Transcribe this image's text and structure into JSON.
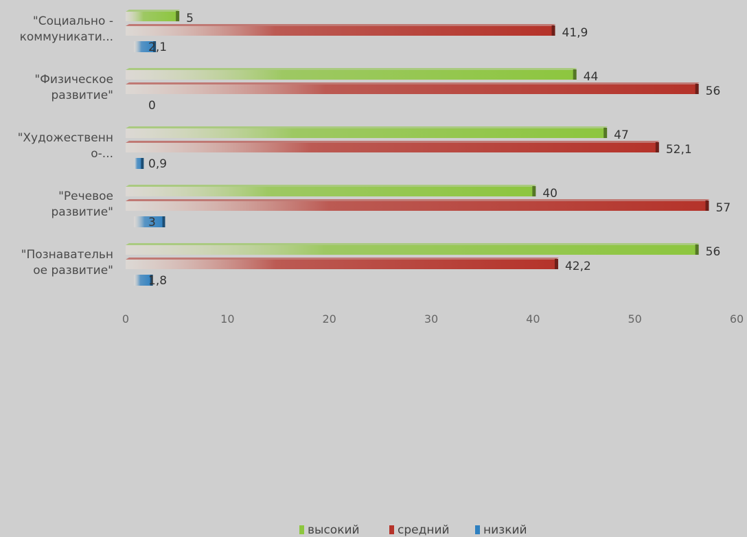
{
  "chart_data": {
    "type": "bar",
    "orientation": "horizontal",
    "categories": [
      [
        "\"Социально -",
        "коммуникати..."
      ],
      [
        "\"Физическое",
        "развитие\""
      ],
      [
        "\"Художественн",
        "о-..."
      ],
      [
        "\"Речевое",
        "развитие\""
      ],
      [
        "\"Познавательн",
        "ое развитие\""
      ]
    ],
    "series": [
      {
        "name": "высокий",
        "color": "#8dc63f",
        "values": [
          5,
          44,
          47,
          40,
          56
        ],
        "labels": [
          "5",
          "44",
          "47",
          "40",
          "56"
        ]
      },
      {
        "name": "средний",
        "color": "#b5332a",
        "values": [
          41.9,
          56,
          52.1,
          57,
          42.2
        ],
        "labels": [
          "41,9",
          "56",
          "52,1",
          "57",
          "42,2"
        ]
      },
      {
        "name": "низкий",
        "color": "#2f80c0",
        "values": [
          2.1,
          0,
          0.9,
          3,
          1.8
        ],
        "labels": [
          "2,1",
          "0",
          "0,9",
          "3",
          "1,8"
        ]
      }
    ],
    "xlim": [
      0,
      60
    ],
    "xticks": [
      "0",
      "10",
      "20",
      "30",
      "40",
      "50",
      "60"
    ],
    "legend_position": "bottom",
    "grid": false
  }
}
